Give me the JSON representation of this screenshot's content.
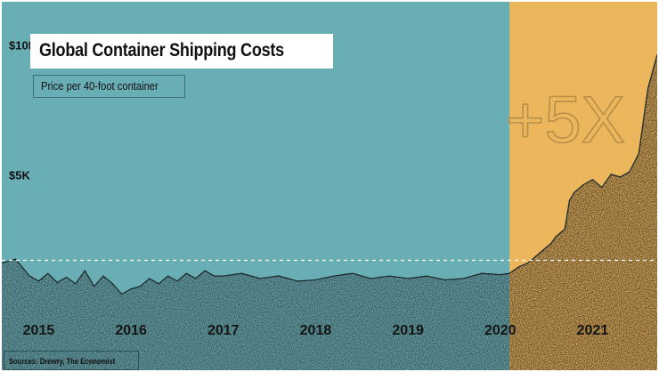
{
  "colors": {
    "background_teal": "#6aaeb5",
    "highlight_orange": "#ecb65c",
    "area_fill": "#2e4345",
    "area_fill_highlight": "#3a2f22",
    "reference_line": "#ffffff"
  },
  "chart_data": {
    "type": "area",
    "title": "Global Container Shipping Costs",
    "subtitle": "Price per 40-foot container",
    "source": "Sources: Drewry, The Economist",
    "annotation": "+5X",
    "x_ticks": [
      "2015",
      "2016",
      "2017",
      "2018",
      "2019",
      "2020",
      "2021"
    ],
    "y_ticks": [
      {
        "label": "$10K",
        "value": 10000
      },
      {
        "label": "$5K",
        "value": 5000
      }
    ],
    "xlim": [
      2014.6,
      2021.7
    ],
    "ylim": [
      0,
      11000
    ],
    "highlight_range": [
      2020.1,
      2021.7
    ],
    "reference_value": 2100,
    "series": [
      {
        "x": [
          2014.6,
          2014.75,
          2014.9,
          2015.0,
          2015.1,
          2015.2,
          2015.3,
          2015.4,
          2015.5,
          2015.6,
          2015.7,
          2015.8,
          2015.9,
          2016.0,
          2016.1,
          2016.2,
          2016.3,
          2016.4,
          2016.5,
          2016.6,
          2016.7,
          2016.8,
          2016.9,
          2017.0,
          2017.2,
          2017.4,
          2017.6,
          2017.8,
          2018.0,
          2018.2,
          2018.4,
          2018.6,
          2018.8,
          2019.0,
          2019.2,
          2019.4,
          2019.6,
          2019.8,
          2020.0,
          2020.1,
          2020.2,
          2020.3,
          2020.4,
          2020.5,
          2020.55,
          2020.6,
          2020.7,
          2020.75,
          2020.8,
          2020.9,
          2021.0,
          2021.1,
          2021.2,
          2021.3,
          2021.4,
          2021.5,
          2021.6,
          2021.7
        ],
        "y": [
          2000,
          2150,
          1500,
          1300,
          1600,
          1250,
          1450,
          1200,
          1700,
          1100,
          1500,
          1200,
          800,
          1000,
          1100,
          1400,
          1200,
          1500,
          1300,
          1600,
          1400,
          1700,
          1500,
          1500,
          1600,
          1400,
          1500,
          1300,
          1350,
          1500,
          1600,
          1400,
          1500,
          1400,
          1500,
          1350,
          1400,
          1600,
          1550,
          1600,
          1850,
          2000,
          2300,
          2600,
          2750,
          3000,
          3300,
          4400,
          4700,
          5000,
          5200,
          4900,
          5400,
          5300,
          5500,
          6200,
          8700,
          10000
        ]
      }
    ]
  }
}
